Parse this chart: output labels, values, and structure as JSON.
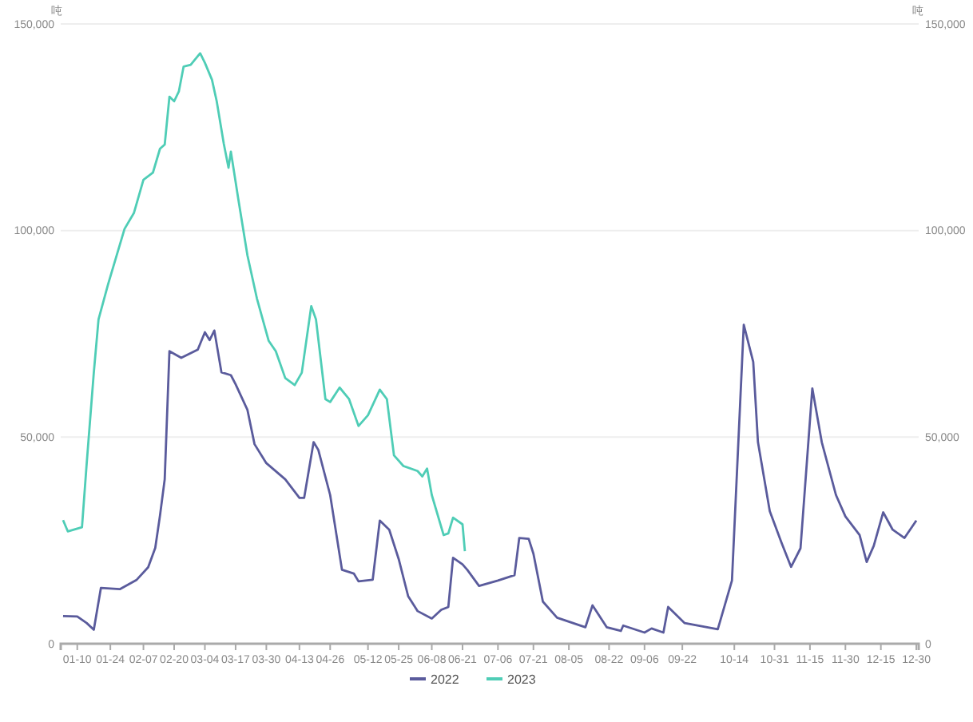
{
  "chart_data": {
    "type": "line",
    "ylabel": "吨",
    "y2label": "吨",
    "xlim": [
      "--01-03",
      "--12-31"
    ],
    "xticks": [
      {
        "value": "--01-10",
        "label": "01-10"
      },
      {
        "value": "--01-24",
        "label": "01-24"
      },
      {
        "value": "--02-07",
        "label": "02-07"
      },
      {
        "value": "--02-20",
        "label": "02-20"
      },
      {
        "value": "--03-04",
        "label": "03-04"
      },
      {
        "value": "--03-17",
        "label": "03-17"
      },
      {
        "value": "--03-30",
        "label": "03-30"
      },
      {
        "value": "--04-13",
        "label": "04-13"
      },
      {
        "value": "--04-26",
        "label": "04-26"
      },
      {
        "value": "--05-12",
        "label": "05-12"
      },
      {
        "value": "--05-25",
        "label": "05-25"
      },
      {
        "value": "--06-08",
        "label": "06-08"
      },
      {
        "value": "--06-21",
        "label": "06-21"
      },
      {
        "value": "--07-06",
        "label": "07-06"
      },
      {
        "value": "--07-21",
        "label": "07-21"
      },
      {
        "value": "--08-05",
        "label": "08-05"
      },
      {
        "value": "--08-22",
        "label": "08-22"
      },
      {
        "value": "--09-06",
        "label": "09-06"
      },
      {
        "value": "--09-22",
        "label": "09-22"
      },
      {
        "value": "--10-14",
        "label": "10-14"
      },
      {
        "value": "--10-31",
        "label": "10-31"
      },
      {
        "value": "--11-15",
        "label": "11-15"
      },
      {
        "value": "--11-30",
        "label": "11-30"
      },
      {
        "value": "--12-15",
        "label": "12-15"
      },
      {
        "value": "--12-30",
        "label": "12-30"
      }
    ],
    "ylim": [
      0,
      150000
    ],
    "yticks": [
      {
        "value": 0,
        "label": "0"
      },
      {
        "value": 50000,
        "label": "50,000"
      },
      {
        "value": 100000,
        "label": "100,000"
      },
      {
        "value": 150000,
        "label": "150,000"
      }
    ],
    "y2lim": [
      0,
      150000
    ],
    "y2ticks": [
      {
        "value": 0,
        "label": "0"
      },
      {
        "value": 50000,
        "label": "50,000"
      },
      {
        "value": 100000,
        "label": "100,000"
      },
      {
        "value": 150000,
        "label": "150,000"
      }
    ],
    "grid": "y",
    "legend": "bottom",
    "marker": "none",
    "line_style": "solid",
    "series": [
      {
        "name": "2022",
        "color": "#5a5b9c",
        "x": [
          "--01-04",
          "--01-10",
          "--01-14",
          "--01-17",
          "--01-20",
          "--01-28",
          "--02-04",
          "--02-09",
          "--02-12",
          "--02-14",
          "--02-16",
          "--02-18",
          "--02-23",
          "--03-01",
          "--03-04",
          "--03-06",
          "--03-08",
          "--03-11",
          "--03-15",
          "--03-17",
          "--03-22",
          "--03-25",
          "--03-30",
          "--04-07",
          "--04-13",
          "--04-15",
          "--04-19",
          "--04-21",
          "--04-26",
          "--05-01",
          "--05-06",
          "--05-08",
          "--05-14",
          "--05-17",
          "--05-21",
          "--05-25",
          "--05-29",
          "--06-02",
          "--06-08",
          "--06-12",
          "--06-15",
          "--06-17",
          "--06-21",
          "--06-23",
          "--06-28",
          "--07-06",
          "--07-13",
          "--07-15",
          "--07-19",
          "--07-21",
          "--07-25",
          "--07-31",
          "--08-12",
          "--08-15",
          "--08-21",
          "--08-27",
          "--08-28",
          "--09-06",
          "--09-09",
          "--09-14",
          "--09-16",
          "--09-23",
          "--10-07",
          "--10-13",
          "--10-18",
          "--10-22",
          "--10-24",
          "--10-29",
          "--11-03",
          "--11-07",
          "--11-11",
          "--11-16",
          "--11-20",
          "--11-26",
          "--11-30",
          "--12-06",
          "--12-09",
          "--12-12",
          "--12-16",
          "--12-20",
          "--12-25",
          "--12-30"
        ],
        "values": [
          6700,
          6600,
          5000,
          3400,
          13500,
          13200,
          15400,
          18500,
          23200,
          31000,
          39800,
          70800,
          69200,
          71200,
          75400,
          73500,
          75800,
          65700,
          65000,
          62800,
          56600,
          48300,
          43700,
          39800,
          35300,
          35300,
          48800,
          46900,
          36000,
          17900,
          17000,
          15100,
          15500,
          29800,
          27600,
          20500,
          11500,
          7900,
          6100,
          8200,
          8900,
          20800,
          19200,
          17900,
          14000,
          15300,
          16600,
          25600,
          25400,
          21800,
          10200,
          6300,
          4000,
          9300,
          4000,
          3100,
          4400,
          2700,
          3700,
          2700,
          8900,
          5000,
          3500,
          15300,
          77200,
          68200,
          48800,
          32100,
          24400,
          18600,
          23100,
          61800,
          48800,
          36000,
          30800,
          26300,
          19800,
          23700,
          31800,
          27600,
          25600,
          29800
        ]
      },
      {
        "name": "2023",
        "color": "#4fcdb6",
        "x": [
          "--01-04",
          "--01-06",
          "--01-12",
          "--01-14",
          "--01-17",
          "--01-19",
          "--01-23",
          "--01-30",
          "--02-03",
          "--02-07",
          "--02-11",
          "--02-14",
          "--02-16",
          "--02-18",
          "--02-20",
          "--02-22",
          "--02-24",
          "--02-27",
          "--03-02",
          "--03-04",
          "--03-07",
          "--03-09",
          "--03-12",
          "--03-14",
          "--03-15",
          "--03-18",
          "--03-22",
          "--03-26",
          "--03-31",
          "--04-03",
          "--04-07",
          "--04-11",
          "--04-14",
          "--04-18",
          "--04-20",
          "--04-24",
          "--04-26",
          "--04-30",
          "--05-04",
          "--05-08",
          "--05-12",
          "--05-17",
          "--05-20",
          "--05-23",
          "--05-27",
          "--06-02",
          "--06-04",
          "--06-06",
          "--06-08",
          "--06-13",
          "--06-15",
          "--06-17",
          "--06-21",
          "--06-22"
        ],
        "values": [
          29900,
          27200,
          28200,
          43700,
          65600,
          78500,
          86900,
          100400,
          104300,
          112300,
          114000,
          119800,
          120800,
          132400,
          131300,
          133700,
          139700,
          140100,
          142900,
          140600,
          136500,
          131300,
          121000,
          115200,
          119100,
          108100,
          94000,
          83600,
          73300,
          70800,
          64300,
          62600,
          65600,
          81700,
          78500,
          59200,
          58500,
          62000,
          59200,
          52700,
          55300,
          61500,
          59200,
          45600,
          43000,
          41800,
          40500,
          42400,
          36000,
          26300,
          26700,
          30500,
          28900,
          22400
        ]
      }
    ]
  }
}
